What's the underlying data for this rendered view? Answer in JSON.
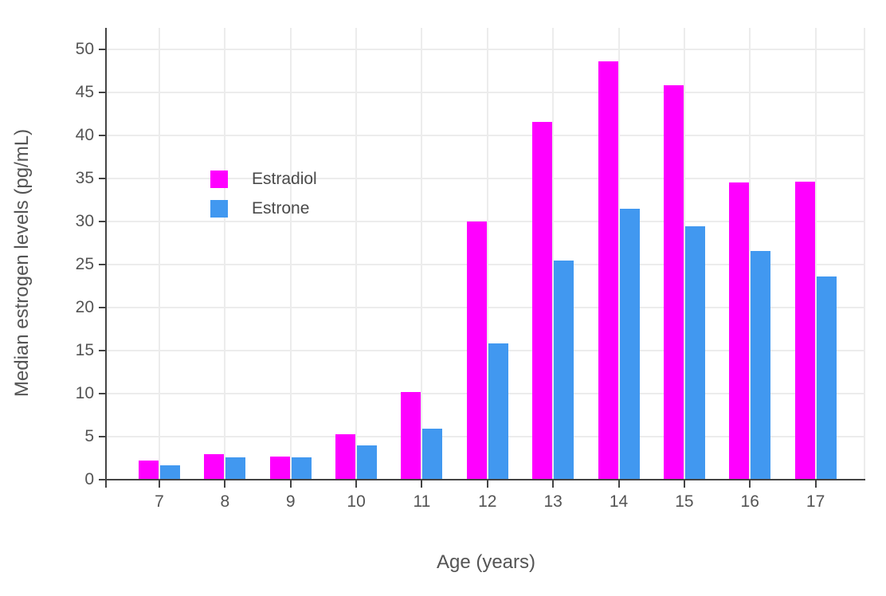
{
  "chart_data": {
    "type": "bar",
    "xlabel": "Age (years)",
    "ylabel": "Median estrogen levels (pg/mL)",
    "categories": [
      "7",
      "8",
      "9",
      "10",
      "11",
      "12",
      "13",
      "14",
      "15",
      "16",
      "17"
    ],
    "series": [
      {
        "name": "Estradiol",
        "color": "#FF00FF",
        "values": [
          2.2,
          3.0,
          2.7,
          5.3,
          10.2,
          30.0,
          41.6,
          48.6,
          45.8,
          34.5,
          34.6
        ]
      },
      {
        "name": "Estrone",
        "color": "#4198F0",
        "values": [
          1.7,
          2.6,
          2.6,
          4.0,
          5.9,
          15.8,
          25.5,
          31.5,
          29.4,
          26.6,
          23.6
        ]
      }
    ],
    "ylim": [
      0,
      52.5
    ],
    "yticks": [
      0,
      5,
      10,
      15,
      20,
      25,
      30,
      35,
      40,
      45,
      50
    ],
    "grid": "on",
    "legend_position": "inside-upper-left"
  },
  "colors": {
    "axis_line": "#444444",
    "grid_line": "#ECECEC",
    "tick_label": "#545454",
    "axis_title": "#545454",
    "legend_text": "#4a4a4a",
    "background": "#ffffff"
  }
}
